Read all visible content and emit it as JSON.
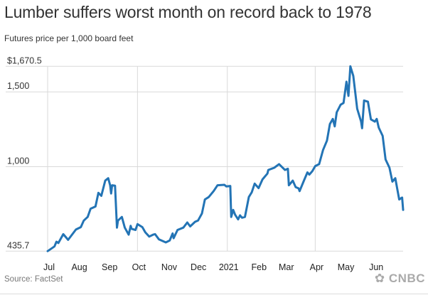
{
  "title": "Lumber suffers worst month on record back to 1978",
  "subtitle": "Futures price per 1,000 board feet",
  "source": "Source: FactSet",
  "logo": "CNBC",
  "chart_data": {
    "type": "line",
    "title": "Lumber suffers worst month on record back to 1978",
    "subtitle": "Futures price per 1,000 board feet",
    "xlabel": "",
    "ylabel": "",
    "ylim": [
      435.7,
      1670.5
    ],
    "xlim": [
      "2020-07-01",
      "2021-06-30"
    ],
    "y_ticks": [
      {
        "value": 1670.5,
        "label": "$1,670.5"
      },
      {
        "value": 1500,
        "label": "1,500"
      },
      {
        "value": 1000,
        "label": "1,000"
      },
      {
        "value": 435.7,
        "label": "435.7"
      }
    ],
    "x_ticks": [
      {
        "date": "2020-07-01",
        "label": "Jul"
      },
      {
        "date": "2020-08-01",
        "label": "Aug"
      },
      {
        "date": "2020-09-01",
        "label": "Sep"
      },
      {
        "date": "2020-10-01",
        "label": "Oct"
      },
      {
        "date": "2020-11-01",
        "label": "Nov"
      },
      {
        "date": "2020-12-01",
        "label": "Dec"
      },
      {
        "date": "2021-01-01",
        "label": "2021"
      },
      {
        "date": "2021-02-01",
        "label": "Feb"
      },
      {
        "date": "2021-03-01",
        "label": "Mar"
      },
      {
        "date": "2021-04-01",
        "label": "Apr"
      },
      {
        "date": "2021-05-01",
        "label": "May"
      },
      {
        "date": "2021-06-01",
        "label": "Jun"
      }
    ],
    "vertical_grid_dates": [
      "2020-07-01",
      "2020-10-01",
      "2021-01-01",
      "2021-04-01"
    ],
    "grid": true,
    "line_color": "#2374b5",
    "series": [
      {
        "x": [
          "2020-07-01",
          "2020-07-08",
          "2020-07-10",
          "2020-07-12",
          "2020-07-17",
          "2020-07-22",
          "2020-07-30",
          "2020-08-04",
          "2020-08-07",
          "2020-08-11",
          "2020-08-14",
          "2020-08-19",
          "2020-08-22",
          "2020-08-25",
          "2020-08-29",
          "2020-09-01",
          "2020-09-03",
          "2020-09-04",
          "2020-09-05",
          "2020-09-08",
          "2020-09-10",
          "2020-09-11",
          "2020-09-15",
          "2020-09-18",
          "2020-09-22",
          "2020-09-24",
          "2020-09-25",
          "2020-09-29",
          "2020-10-01",
          "2020-10-06",
          "2020-10-09",
          "2020-10-13",
          "2020-10-17",
          "2020-10-19",
          "2020-10-23",
          "2020-10-30",
          "2020-11-03",
          "2020-11-06",
          "2020-11-07",
          "2020-11-11",
          "2020-11-17",
          "2020-11-21",
          "2020-11-24",
          "2020-11-29",
          "2020-12-02",
          "2020-12-06",
          "2020-12-09",
          "2020-12-13",
          "2020-12-18",
          "2020-12-22",
          "2020-12-29",
          "2020-12-31",
          "2021-01-04",
          "2021-01-05",
          "2021-01-07",
          "2021-01-09",
          "2021-01-12",
          "2021-01-14",
          "2021-01-16",
          "2021-01-19",
          "2021-01-23",
          "2021-01-26",
          "2021-01-29",
          "2021-02-02",
          "2021-02-06",
          "2021-02-11",
          "2021-02-12",
          "2021-02-18",
          "2021-02-23",
          "2021-03-01",
          "2021-03-04",
          "2021-03-05",
          "2021-03-09",
          "2021-03-12",
          "2021-03-15",
          "2021-03-16",
          "2021-03-20",
          "2021-03-24",
          "2021-03-26",
          "2021-03-29",
          "2021-04-01",
          "2021-04-05",
          "2021-04-09",
          "2021-04-13",
          "2021-04-16",
          "2021-04-19",
          "2021-04-21",
          "2021-04-23",
          "2021-04-27",
          "2021-04-30",
          "2021-05-03",
          "2021-05-05",
          "2021-05-07",
          "2021-05-10",
          "2021-05-14",
          "2021-05-18",
          "2021-05-19",
          "2021-05-21",
          "2021-05-25",
          "2021-05-28",
          "2021-06-01",
          "2021-06-03",
          "2021-06-05",
          "2021-06-09",
          "2021-06-12",
          "2021-06-16",
          "2021-06-19",
          "2021-06-22",
          "2021-06-26",
          "2021-06-29",
          "2021-06-30"
        ],
        "y": [
          435.7,
          467,
          499,
          490,
          549,
          511,
          580,
          596,
          640,
          664,
          719,
          734,
          825,
          805,
          907,
          923,
          876,
          821,
          876,
          873,
          593,
          640,
          664,
          593,
          546,
          605,
          585,
          577,
          616,
          596,
          561,
          533,
          546,
          549,
          514,
          494,
          507,
          554,
          522,
          577,
          593,
          627,
          601,
          632,
          640,
          687,
          781,
          797,
          837,
          876,
          879,
          868,
          871,
          664,
          711,
          679,
          648,
          675,
          659,
          664,
          797,
          829,
          887,
          857,
          915,
          954,
          978,
          993,
          1017,
          978,
          986,
          876,
          907,
          863,
          855,
          837,
          900,
          962,
          947,
          970,
          1004,
          1017,
          1112,
          1174,
          1285,
          1319,
          1269,
          1363,
          1414,
          1426,
          1568,
          1473,
          1670.5,
          1607,
          1387,
          1301,
          1257,
          1442,
          1434,
          1316,
          1301,
          1319,
          1261,
          1206,
          1049,
          993,
          900,
          923,
          781,
          794,
          711
        ]
      }
    ]
  }
}
